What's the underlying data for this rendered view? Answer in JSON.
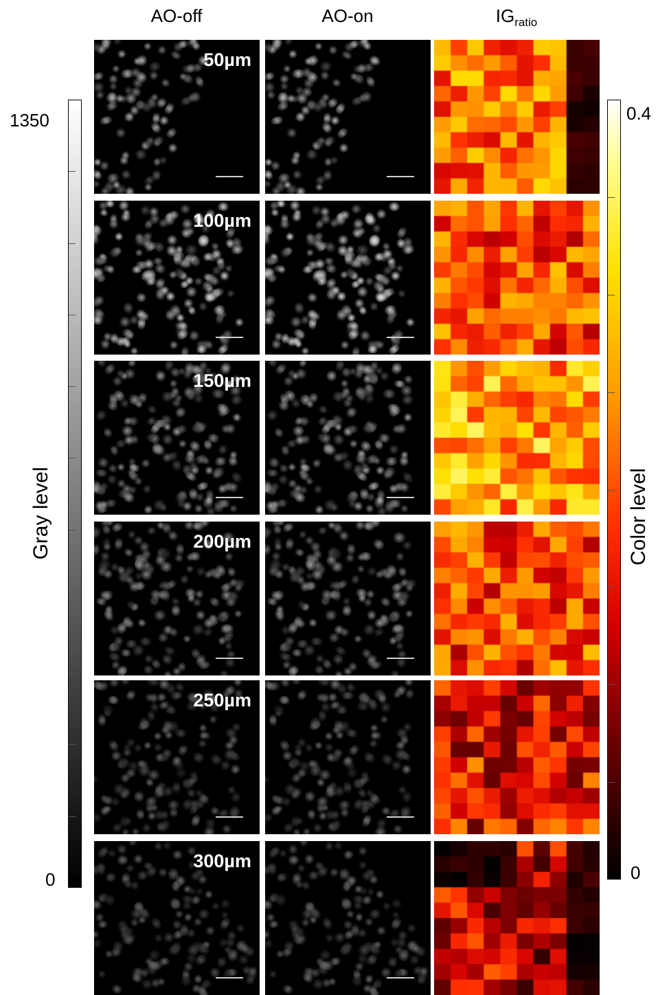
{
  "columns": [
    {
      "id": "ao-off",
      "label": "AO-off"
    },
    {
      "id": "ao-on",
      "label": "AO-on"
    },
    {
      "id": "ig-ratio",
      "label_main": "IG",
      "label_sub": "ratio"
    }
  ],
  "depths": [
    "50µm",
    "100µm",
    "150µm",
    "200µm",
    "250µm",
    "300µm"
  ],
  "gray_colorbar": {
    "title": "Gray level",
    "max_label": "1350",
    "min_label": "0"
  },
  "color_colorbar": {
    "title": "Color level",
    "max_label": "0.4",
    "min_label": "0"
  },
  "colors": {
    "background": "#ffffff",
    "panel": "#000000",
    "scalebar": "#d0d0d0"
  }
}
